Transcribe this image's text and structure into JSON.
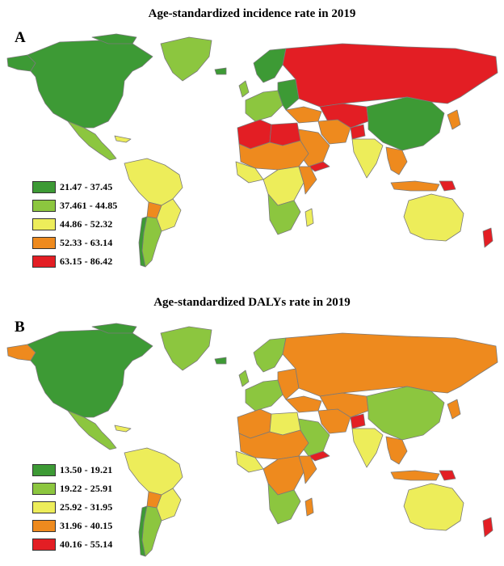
{
  "panel_a": {
    "letter": "A",
    "title": "Age-standardized incidence rate in 2019",
    "legend": [
      {
        "label": "21.47 - 37.45",
        "color": "#3d9a35"
      },
      {
        "label": "37.461 - 44.85",
        "color": "#8cc63f"
      },
      {
        "label": "44.86 - 52.32",
        "color": "#eded5a"
      },
      {
        "label": "52.33 - 63.14",
        "color": "#ee8a1e"
      },
      {
        "label": "63.15 - 86.42",
        "color": "#e31e24"
      }
    ]
  },
  "panel_b": {
    "letter": "B",
    "title": "Age-standardized DALYs rate in 2019",
    "legend": [
      {
        "label": "13.50 - 19.21",
        "color": "#3d9a35"
      },
      {
        "label": "19.22 - 25.91",
        "color": "#8cc63f"
      },
      {
        "label": "25.92 - 31.95",
        "color": "#eded5a"
      },
      {
        "label": "31.96 - 40.15",
        "color": "#ee8a1e"
      },
      {
        "label": "40.16 - 55.14",
        "color": "#e31e24"
      }
    ]
  }
}
